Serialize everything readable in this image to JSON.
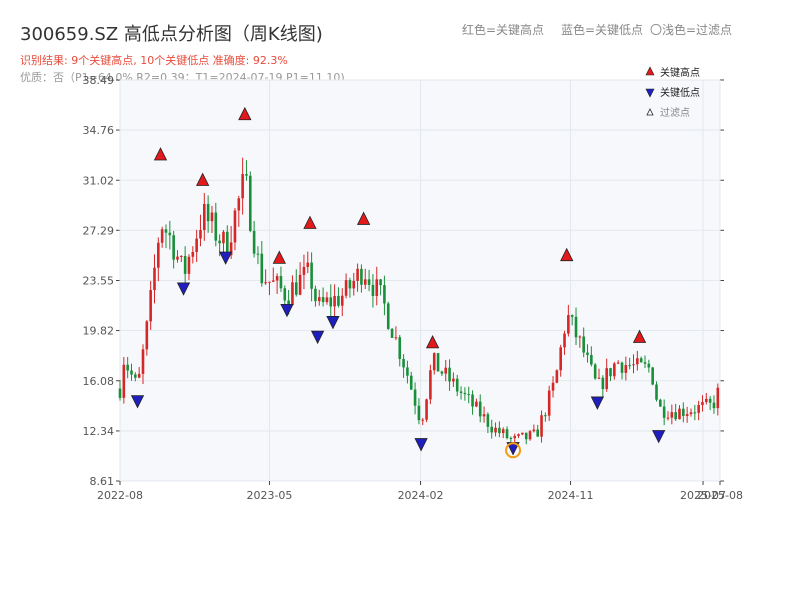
{
  "header": {
    "title": "300659.SZ 高低点分析图（周K线图)",
    "legend_red": "红色=关键高点",
    "legend_blue": "蓝色=关键低点",
    "legend_light": "〇浅色=过滤点",
    "result": "识别结果: 9个关键高点, 10个关键低点   准确度: 92.3%",
    "quality": "优质：否（P1=64.0%  R2=0.39；T1=2024-07-19 P1=11.10)"
  },
  "chart_data": {
    "type": "candlestick",
    "title": "300659.SZ 高低点分析图（周K线图)",
    "x_tick_labels": [
      "2022-08",
      "2023-05",
      "2024-02",
      "2024-11",
      "2025-07",
      "2025-08"
    ],
    "x_tick_dates": [
      "2022-08-01",
      "2023-05-01",
      "2024-02-01",
      "2024-11-01",
      "2025-07-01",
      "2025-08-01"
    ],
    "x_range": [
      "2022-08-01",
      "2025-08-01"
    ],
    "y_ticks": [
      8.61,
      12.34,
      16.08,
      19.82,
      23.55,
      27.29,
      31.02,
      34.76,
      38.49
    ],
    "y_tick_labels": [
      "8.61",
      "12.34",
      "16.08",
      "19.82",
      "23.55",
      "27.29",
      "31.02",
      "34.76",
      "38.49"
    ],
    "ylim": [
      8.61,
      38.49
    ],
    "grid": true,
    "colors": {
      "up": "#d62728",
      "down": "#1a8f3a",
      "high": "#e31a1c",
      "low": "#1f1fbf",
      "highlight": "#f39c12"
    },
    "legend": {
      "position": "top-right",
      "entries": [
        {
          "label": "关键高点",
          "marker": "triangle-up",
          "color": "#e31a1c"
        },
        {
          "label": "关键低点",
          "marker": "triangle-down",
          "color": "#1f1fbf"
        },
        {
          "label": "过滤点",
          "marker": "triangle-up-hollow",
          "color": "#888888"
        }
      ]
    },
    "key_highs": [
      {
        "date": "2022-10-14",
        "value": 32.9
      },
      {
        "date": "2022-12-30",
        "value": 31.0
      },
      {
        "date": "2023-03-17",
        "value": 35.9
      },
      {
        "date": "2023-05-19",
        "value": 25.2
      },
      {
        "date": "2023-07-14",
        "value": 27.8
      },
      {
        "date": "2023-10-20",
        "value": 28.1
      },
      {
        "date": "2024-02-23",
        "value": 18.9
      },
      {
        "date": "2024-10-25",
        "value": 25.4
      },
      {
        "date": "2025-03-07",
        "value": 19.3
      }
    ],
    "key_lows": [
      {
        "date": "2022-09-02",
        "value": 14.6
      },
      {
        "date": "2022-11-25",
        "value": 23.0
      },
      {
        "date": "2023-02-10",
        "value": 25.3
      },
      {
        "date": "2023-06-02",
        "value": 21.4
      },
      {
        "date": "2023-07-28",
        "value": 19.4
      },
      {
        "date": "2023-08-25",
        "value": 20.5
      },
      {
        "date": "2024-02-02",
        "value": 11.4
      },
      {
        "date": "2024-07-19",
        "value": 11.1
      },
      {
        "date": "2024-12-20",
        "value": 14.5
      },
      {
        "date": "2025-04-11",
        "value": 12.0
      }
    ],
    "highlight_point": {
      "date": "2024-07-19",
      "value": 10.9
    },
    "anchor_prices": [
      [
        "2022-08-05",
        18.0
      ],
      [
        "2022-09-02",
        15.5
      ],
      [
        "2022-09-23",
        21.0
      ],
      [
        "2022-10-14",
        28.0
      ],
      [
        "2022-11-04",
        26.5
      ],
      [
        "2022-11-25",
        24.0
      ],
      [
        "2022-12-30",
        28.5
      ],
      [
        "2023-02-03",
        26.5
      ],
      [
        "2023-02-10",
        26.0
      ],
      [
        "2023-03-17",
        31.0
      ],
      [
        "2023-04-14",
        24.0
      ],
      [
        "2023-06-02",
        22.5
      ],
      [
        "2023-06-23",
        23.5
      ],
      [
        "2023-07-14",
        24.0
      ],
      [
        "2023-07-28",
        21.5
      ],
      [
        "2023-09-15",
        22.5
      ],
      [
        "2023-10-20",
        24.5
      ],
      [
        "2023-11-24",
        22.0
      ],
      [
        "2024-01-05",
        17.0
      ],
      [
        "2024-02-02",
        13.0
      ],
      [
        "2024-02-23",
        17.5
      ],
      [
        "2024-04-19",
        15.0
      ],
      [
        "2024-06-14",
        12.5
      ],
      [
        "2024-07-19",
        11.6
      ],
      [
        "2024-08-30",
        12.0
      ],
      [
        "2024-10-04",
        16.0
      ],
      [
        "2024-10-25",
        21.0
      ],
      [
        "2024-11-22",
        18.5
      ],
      [
        "2024-12-20",
        15.5
      ],
      [
        "2025-01-24",
        17.5
      ],
      [
        "2025-03-07",
        17.0
      ],
      [
        "2025-03-28",
        17.0
      ],
      [
        "2025-04-11",
        14.0
      ],
      [
        "2025-05-16",
        13.8
      ],
      [
        "2025-07-18",
        14.2
      ],
      [
        "2025-08-01",
        15.5
      ]
    ],
    "note": "Weekly OHLC candles are reconstructed approximately from the chart via the anchor prices; key highs/lows are read from the markers."
  }
}
